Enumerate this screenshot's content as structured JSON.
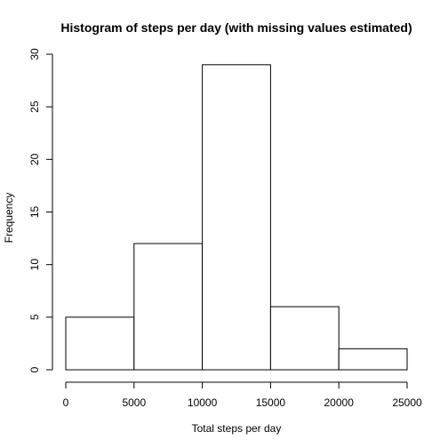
{
  "chart_data": {
    "type": "bar",
    "title": "Histogram of steps per day (with missing values estimated)",
    "xlabel": "Total steps per day",
    "ylabel": "Frequency",
    "bins": [
      {
        "start": 0,
        "end": 5000,
        "count": 5
      },
      {
        "start": 5000,
        "end": 10000,
        "count": 12
      },
      {
        "start": 10000,
        "end": 15000,
        "count": 29
      },
      {
        "start": 15000,
        "end": 20000,
        "count": 6
      },
      {
        "start": 20000,
        "end": 25000,
        "count": 2
      }
    ],
    "xlim": [
      0,
      25000
    ],
    "ylim": [
      0,
      30
    ],
    "xticks": [
      0,
      5000,
      10000,
      15000,
      20000,
      25000
    ],
    "xtick_labels": [
      "0",
      "5000",
      "10000",
      "15000",
      "20000",
      "25000"
    ],
    "yticks": [
      0,
      5,
      10,
      15,
      20,
      25,
      30
    ],
    "ytick_labels": [
      "0",
      "5",
      "10",
      "15",
      "20",
      "25",
      "30"
    ],
    "grid": false,
    "colors": {
      "bar_fill": "#ffffff",
      "bar_stroke": "#000000"
    }
  }
}
